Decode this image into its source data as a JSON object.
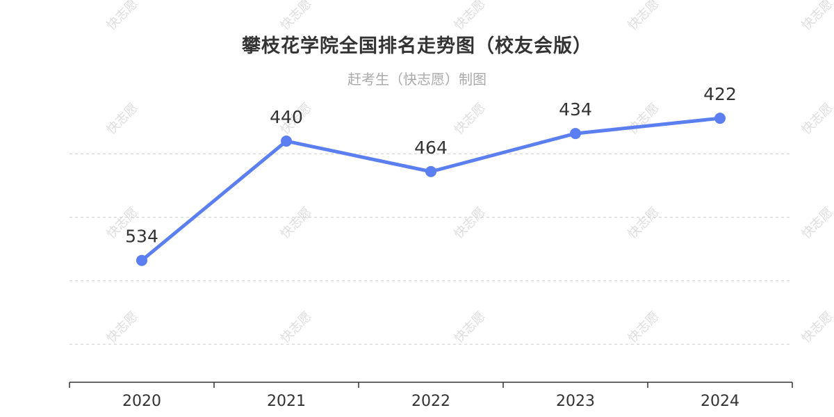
{
  "chart_data": {
    "type": "line",
    "title": "攀枝花学院全国排名走势图（校友会版）",
    "subtitle": "赶考生（快志愿）制图",
    "categories": [
      "2020",
      "2021",
      "2022",
      "2023",
      "2024"
    ],
    "values": [
      534,
      440,
      464,
      434,
      422
    ],
    "y_inverted": true,
    "y_range": [
      630,
      400
    ],
    "grid": true,
    "line_color": "#5b7ef0",
    "legend": "none"
  },
  "watermark": {
    "text": "快志愿",
    "color": "#dddddd"
  }
}
